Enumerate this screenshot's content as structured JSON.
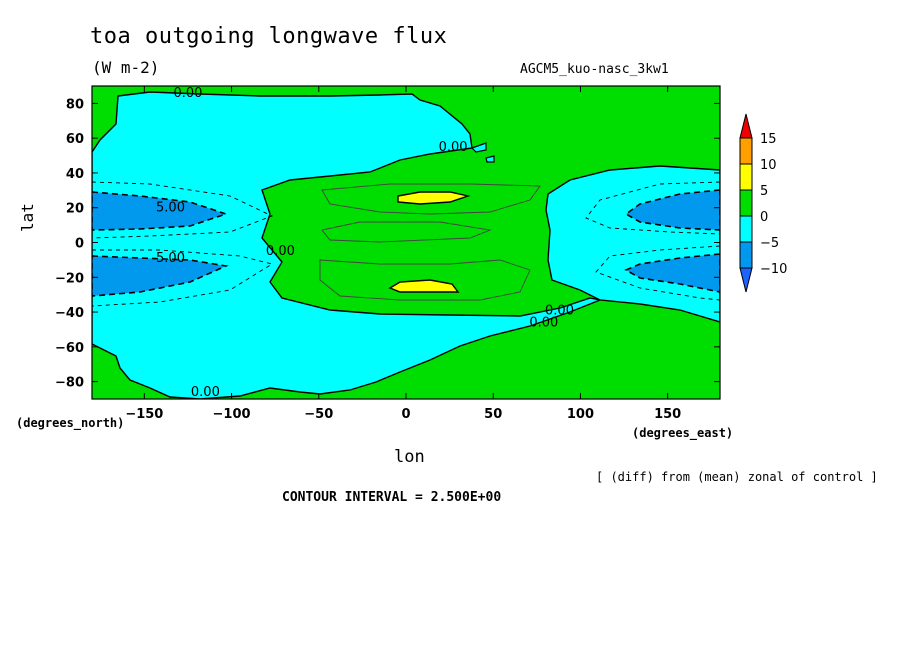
{
  "chart_data": {
    "type": "contour",
    "title": "toa outgoing longwave flux",
    "units": "(W m-2)",
    "run_label": "AGCM5_kuo-nasc_3kw1",
    "xlabel": "lon",
    "ylabel": "lat",
    "x_units_label": "(degrees_east)",
    "y_units_label": "(degrees_north)",
    "xlim": [
      -180,
      180
    ],
    "ylim": [
      -90,
      90
    ],
    "xticks": [
      -150,
      -100,
      -50,
      0,
      50,
      100,
      150
    ],
    "xtick_labels": [
      "−150",
      "−100",
      "−50",
      "0",
      "50",
      "100",
      "150"
    ],
    "yticks": [
      80,
      60,
      40,
      20,
      0,
      -20,
      -40,
      -60,
      -80
    ],
    "ytick_labels": [
      "80",
      "60",
      "40",
      "20",
      "0",
      "−20",
      "−40",
      "−60",
      "−80"
    ],
    "contour_interval": 2.5,
    "contour_interval_text": "CONTOUR INTERVAL = 2.500E+00",
    "note": "[ (diff) from (mean) zonal of control ]",
    "contour_labels": [
      {
        "text": "0.00",
        "lon": -125,
        "lat": 86
      },
      {
        "text": "0.00",
        "lon": 27,
        "lat": 55
      },
      {
        "text": "5.00",
        "lon": -135,
        "lat": 20
      },
      {
        "text": "0.00",
        "lon": -72,
        "lat": -5
      },
      {
        "text": "5.00",
        "lon": -135,
        "lat": -9
      },
      {
        "text": "0.00",
        "lon": 88,
        "lat": -39
      },
      {
        "text": "0.00",
        "lon": 79,
        "lat": -46
      },
      {
        "text": "0.00",
        "lon": -115,
        "lat": -86
      }
    ],
    "colorbar": {
      "levels": [
        15,
        10,
        5,
        0,
        -5,
        -10
      ],
      "labels": [
        "15",
        "10",
        "5",
        "0",
        "−5",
        "−10"
      ],
      "colors": [
        "#ee0000",
        "#ffa000",
        "#ffff00",
        "#00dd00",
        "#00ffff",
        "#0099ee",
        "#1c64ff"
      ]
    },
    "colors": {
      "positive": "#00dd00",
      "near_zero_negative": "#00ffff",
      "negative": "#0099ee",
      "high": "#ffff00"
    }
  }
}
